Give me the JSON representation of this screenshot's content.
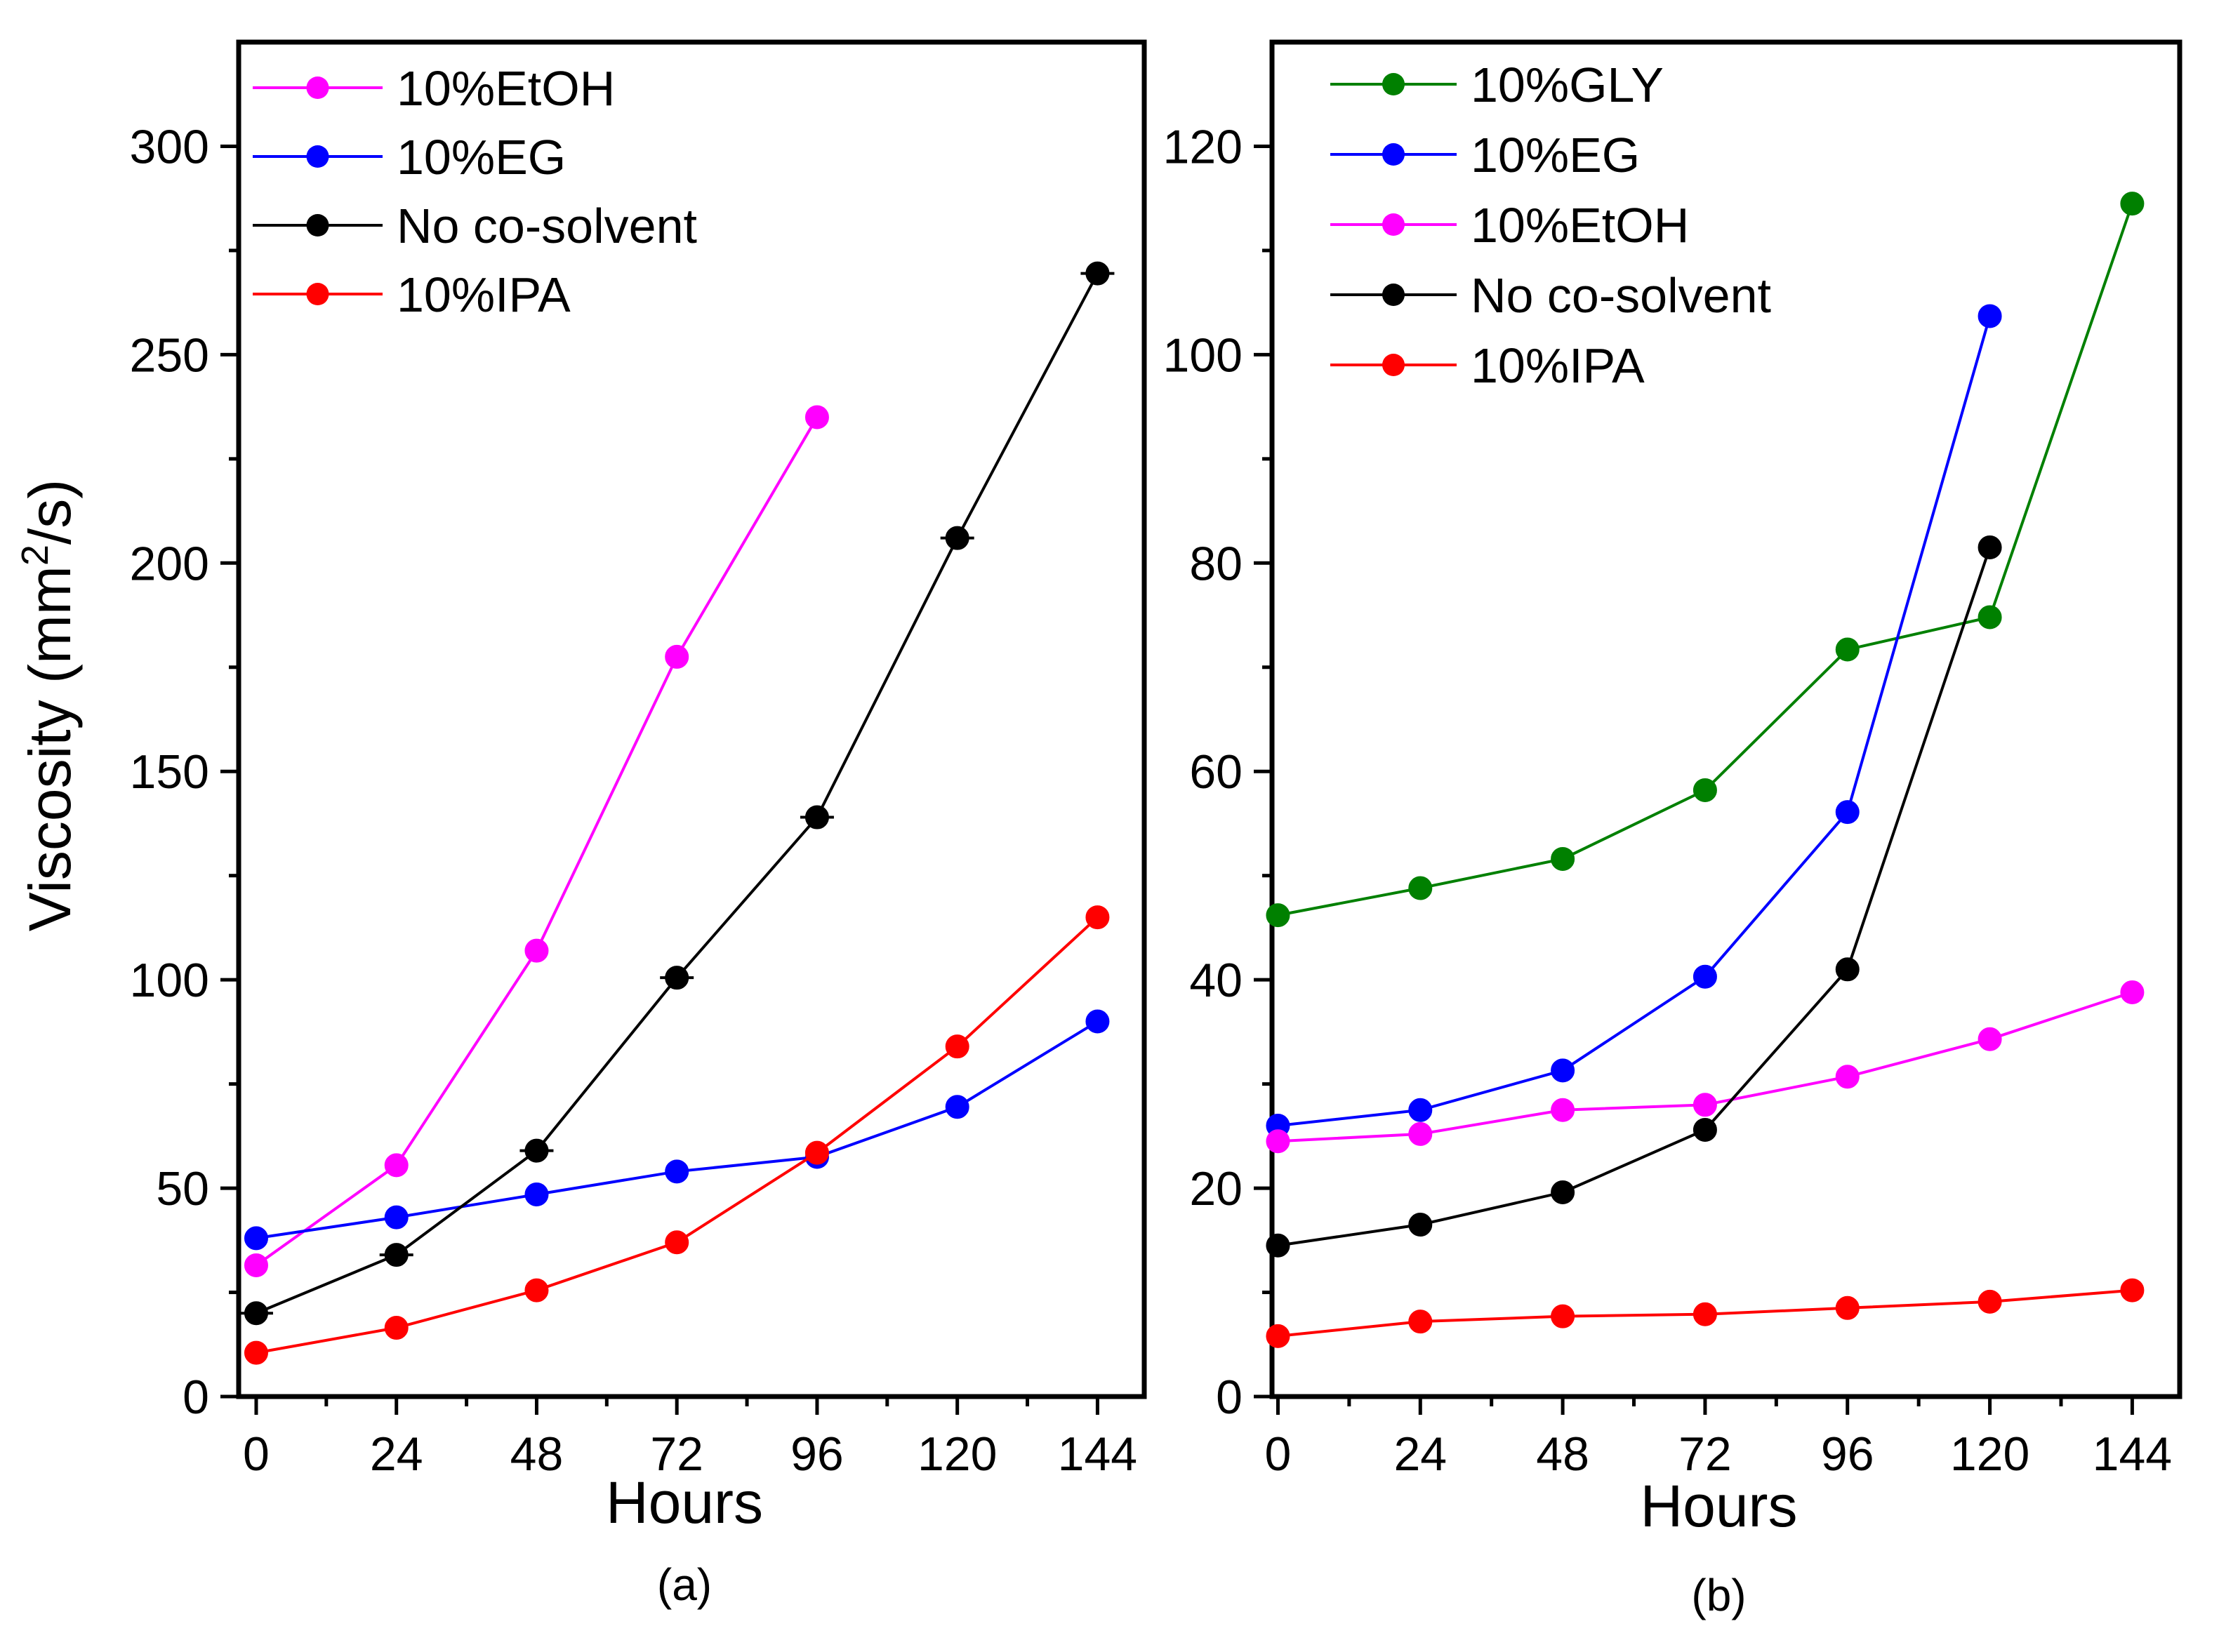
{
  "chart_data": [
    {
      "type": "line",
      "panel_label": "(a)",
      "xlabel": "Hours",
      "ylabel": "Viscosity (mm",
      "ylabel_sup": "2",
      "ylabel_tail": "/s)",
      "xlim": [
        -3,
        152
      ],
      "ylim": [
        0,
        325
      ],
      "xticks": [
        0,
        24,
        48,
        72,
        96,
        120,
        144
      ],
      "yticks": [
        0,
        50,
        100,
        150,
        200,
        250,
        300
      ],
      "legend_position": "top-left",
      "series": [
        {
          "name": "10%EtOH",
          "color": "#ff00ff",
          "x": [
            0,
            24,
            48,
            72,
            96
          ],
          "y": [
            31.5,
            55.5,
            107,
            177.5,
            235
          ]
        },
        {
          "name": "10%EG",
          "color": "#0000ff",
          "x": [
            0,
            24,
            48,
            72,
            96,
            120,
            144
          ],
          "y": [
            38,
            43,
            48.5,
            54,
            57.5,
            69.5,
            90
          ]
        },
        {
          "name": "No co-solvent",
          "color": "#000000",
          "x": [
            0,
            24,
            48,
            72,
            96,
            120,
            144
          ],
          "y": [
            20,
            34,
            59,
            100.5,
            139,
            206,
            269.5
          ]
        },
        {
          "name": "10%IPA",
          "color": "#ff0000",
          "x": [
            0,
            24,
            48,
            72,
            96,
            120,
            144
          ],
          "y": [
            10.5,
            16.5,
            25.5,
            37,
            58.5,
            84,
            115
          ]
        }
      ]
    },
    {
      "type": "line",
      "panel_label": "(b)",
      "xlabel": "Hours",
      "xlim": [
        -1,
        152
      ],
      "ylim": [
        0,
        130
      ],
      "xticks": [
        0,
        24,
        48,
        72,
        96,
        120,
        144
      ],
      "yticks": [
        0,
        20,
        40,
        60,
        80,
        100,
        120
      ],
      "legend_position": "top-left",
      "series": [
        {
          "name": "10%GLY",
          "color": "#008000",
          "x": [
            0,
            24,
            48,
            72,
            96,
            120,
            144
          ],
          "y": [
            46.2,
            48.8,
            51.6,
            58.2,
            71.7,
            74.8,
            114.5
          ]
        },
        {
          "name": "10%EG",
          "color": "#0000ff",
          "x": [
            0,
            24,
            48,
            72,
            96,
            120
          ],
          "y": [
            26,
            27.5,
            31.3,
            40.3,
            56.1,
            103.7
          ]
        },
        {
          "name": "10%EtOH",
          "color": "#ff00ff",
          "x": [
            0,
            24,
            48,
            72,
            96,
            120,
            144
          ],
          "y": [
            24.5,
            25.2,
            27.5,
            28,
            30.7,
            34.3,
            38.8
          ]
        },
        {
          "name": "No co-solvent",
          "color": "#000000",
          "x": [
            0,
            24,
            48,
            72,
            96,
            120
          ],
          "y": [
            14.5,
            16.5,
            19.6,
            25.6,
            41,
            81.5
          ]
        },
        {
          "name": "10%IPA",
          "color": "#ff0000",
          "x": [
            0,
            24,
            48,
            72,
            96,
            120,
            144
          ],
          "y": [
            5.8,
            7.2,
            7.7,
            7.9,
            8.5,
            9.1,
            10.2
          ]
        }
      ]
    }
  ]
}
